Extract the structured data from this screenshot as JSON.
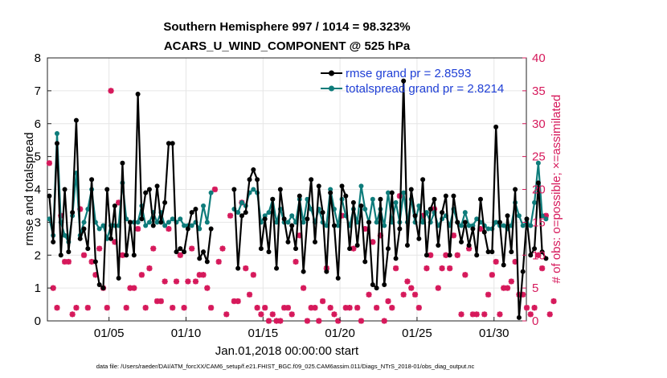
{
  "title_line1": "Southern Hemisphere 997 / 1014 = 98.323%",
  "title_line2": "ACARS_U_WIND_COMPONENT @ 525 hPa",
  "footer": "data file: /Users/raeder/DAI/ATM_forcXX/CAM6_setup/f.e21.FHIST_BGC.f09_025.CAM6assim.011/Diags_NTrS_2018-01/obs_diag_output.nc",
  "colors": {
    "rmse": "#000000",
    "spread": "#0e7c7b",
    "obs": "#d6195b",
    "legend_text": "#1f3fd6",
    "grid": "#e6e6e6"
  },
  "chart_data": {
    "type": "line",
    "xlabel": "Jan.01,2018 00:00:00 start",
    "ylabel": "rmse and totalspread",
    "ylabel_right": "# of obs: o=possible; ×=assimilated",
    "xlim": [
      1,
      32.1
    ],
    "ylim": [
      0,
      8
    ],
    "ylim_right": [
      0,
      40
    ],
    "xtick_values": [
      5,
      10,
      15,
      20,
      25,
      30
    ],
    "xtick_labels": [
      "01/05",
      "01/10",
      "01/15",
      "01/20",
      "01/25",
      "01/30"
    ],
    "ytick_labels": [
      "0",
      "1",
      "2",
      "3",
      "4",
      "5",
      "6",
      "7",
      "8"
    ],
    "ytick_labels_right": [
      "0",
      "5",
      "10",
      "15",
      "20",
      "25",
      "30",
      "35",
      "40"
    ],
    "x_start": 1.125,
    "x_step": 0.25,
    "series": [
      {
        "name": "rmse grand pr = 2.8593",
        "axis": "left",
        "values": [
          3.8,
          2.4,
          5.4,
          2.0,
          4.0,
          2.1,
          3.3,
          6.1,
          2.5,
          2.8,
          2.2,
          4.3,
          1.8,
          1.1,
          1.0,
          4.0,
          2.5,
          3.5,
          1.3,
          4.8,
          2.0,
          3.0,
          2.0,
          6.9,
          3.1,
          3.9,
          4.0,
          2.9,
          4.1,
          3.0,
          3.6,
          5.4,
          5.4,
          2.1,
          2.2,
          2.1,
          2.8,
          3.3,
          3.4,
          1.9,
          2.1,
          1.8,
          2.8,
          null,
          null,
          null,
          null,
          null,
          4.0,
          1.6,
          3.2,
          3.3,
          4.3,
          4.6,
          4.3,
          2.2,
          3.1,
          2.1,
          3.7,
          1.6,
          4.0,
          3.1,
          2.4,
          2.9,
          2.2,
          3.8,
          1.5,
          3.1,
          4.3,
          2.4,
          4.1,
          3.3,
          1.5,
          3.9,
          2.9,
          1.3,
          4.1,
          3.8,
          2.2,
          3.6,
          2.3,
          3.5,
          1.8,
          3.0,
          1.1,
          1.0,
          3.7,
          1.1,
          2.2,
          3.9,
          1.9,
          2.8,
          7.3,
          2.3,
          4.0,
          3.2,
          2.5,
          4.3,
          2.0,
          3.4,
          3.7,
          2.3,
          3.3,
          3.8,
          2.0,
          3.8,
          3.0,
          2.4,
          3.0,
          2.3,
          2.8,
          2.0,
          3.7,
          2.7,
          2.1,
          2.1,
          5.9,
          3.0,
          1.7,
          3.2,
          2.1,
          4.0,
          0.1,
          1.5,
          3.1,
          2.0,
          2.2,
          4.2,
          2.1,
          1.9
        ]
      },
      {
        "name": "totalspread grand pr = 2.8214",
        "axis": "left",
        "values": [
          3.1,
          2.6,
          5.7,
          3.0,
          2.6,
          2.4,
          3.2,
          4.5,
          2.6,
          3.0,
          3.4,
          4.0,
          3.0,
          2.8,
          2.9,
          2.5,
          2.9,
          2.9,
          2.9,
          4.2,
          3.1,
          3.0,
          3.0,
          3.0,
          3.5,
          2.9,
          3.0,
          3.3,
          3.0,
          3.3,
          2.9,
          3.0,
          3.1,
          3.0,
          3.1,
          2.9,
          2.9,
          2.9,
          3.0,
          2.8,
          3.5,
          3.0,
          3.9,
          null,
          null,
          null,
          null,
          null,
          3.4,
          3.3,
          3.6,
          3.5,
          3.9,
          4.0,
          3.9,
          3.0,
          3.2,
          3.3,
          3.7,
          3.0,
          3.4,
          3.0,
          3.0,
          3.2,
          3.0,
          3.7,
          3.0,
          3.7,
          3.4,
          3.0,
          3.4,
          3.0,
          2.9,
          4.0,
          3.4,
          2.9,
          3.7,
          3.2,
          2.9,
          3.4,
          3.0,
          4.1,
          3.4,
          3.0,
          3.7,
          3.0,
          3.4,
          2.9,
          3.9,
          3.0,
          3.6,
          3.0,
          3.9,
          3.0,
          3.7,
          3.0,
          3.5,
          3.0,
          3.3,
          3.0,
          3.3,
          2.9,
          3.1,
          3.2,
          2.9,
          3.4,
          3.0,
          2.9,
          3.3,
          2.9,
          2.9,
          3.1,
          3.0,
          2.9,
          2.8,
          2.8,
          3.0,
          2.9,
          2.9,
          2.8,
          2.9,
          3.6,
          3.2,
          2.9,
          3.0,
          2.9,
          3.6,
          4.8,
          3.2,
          3.1
        ]
      },
      {
        "name": "# of obs possible/assimilated",
        "axis": "right",
        "values": [
          24,
          5,
          2,
          16,
          9,
          9,
          1,
          2,
          17,
          10,
          2,
          9,
          7,
          11,
          5,
          2,
          35,
          12,
          18,
          10,
          2,
          5,
          5,
          14,
          7,
          2,
          8,
          11,
          3,
          3,
          6,
          14,
          2,
          6,
          10,
          2,
          6,
          11,
          6,
          7,
          7,
          5,
          2,
          20,
          9,
          11,
          1,
          16,
          3,
          3,
          18,
          8,
          4,
          7,
          2,
          1,
          2,
          0,
          1,
          0,
          0,
          2,
          2,
          1,
          9,
          13,
          5,
          0,
          2,
          2,
          0,
          3,
          8,
          2,
          1,
          0,
          16,
          2,
          2,
          11,
          2,
          0,
          14,
          4,
          12,
          2,
          13,
          0,
          3,
          2,
          8,
          19,
          4,
          6,
          5,
          4,
          2,
          16,
          8,
          10,
          17,
          5,
          8,
          10,
          8,
          13,
          10,
          1,
          7,
          11,
          1,
          1,
          14,
          1,
          4,
          7,
          9,
          1,
          5,
          5,
          6,
          9,
          4,
          4,
          2,
          1,
          2,
          10,
          8,
          16,
          1,
          3
        ]
      }
    ]
  }
}
